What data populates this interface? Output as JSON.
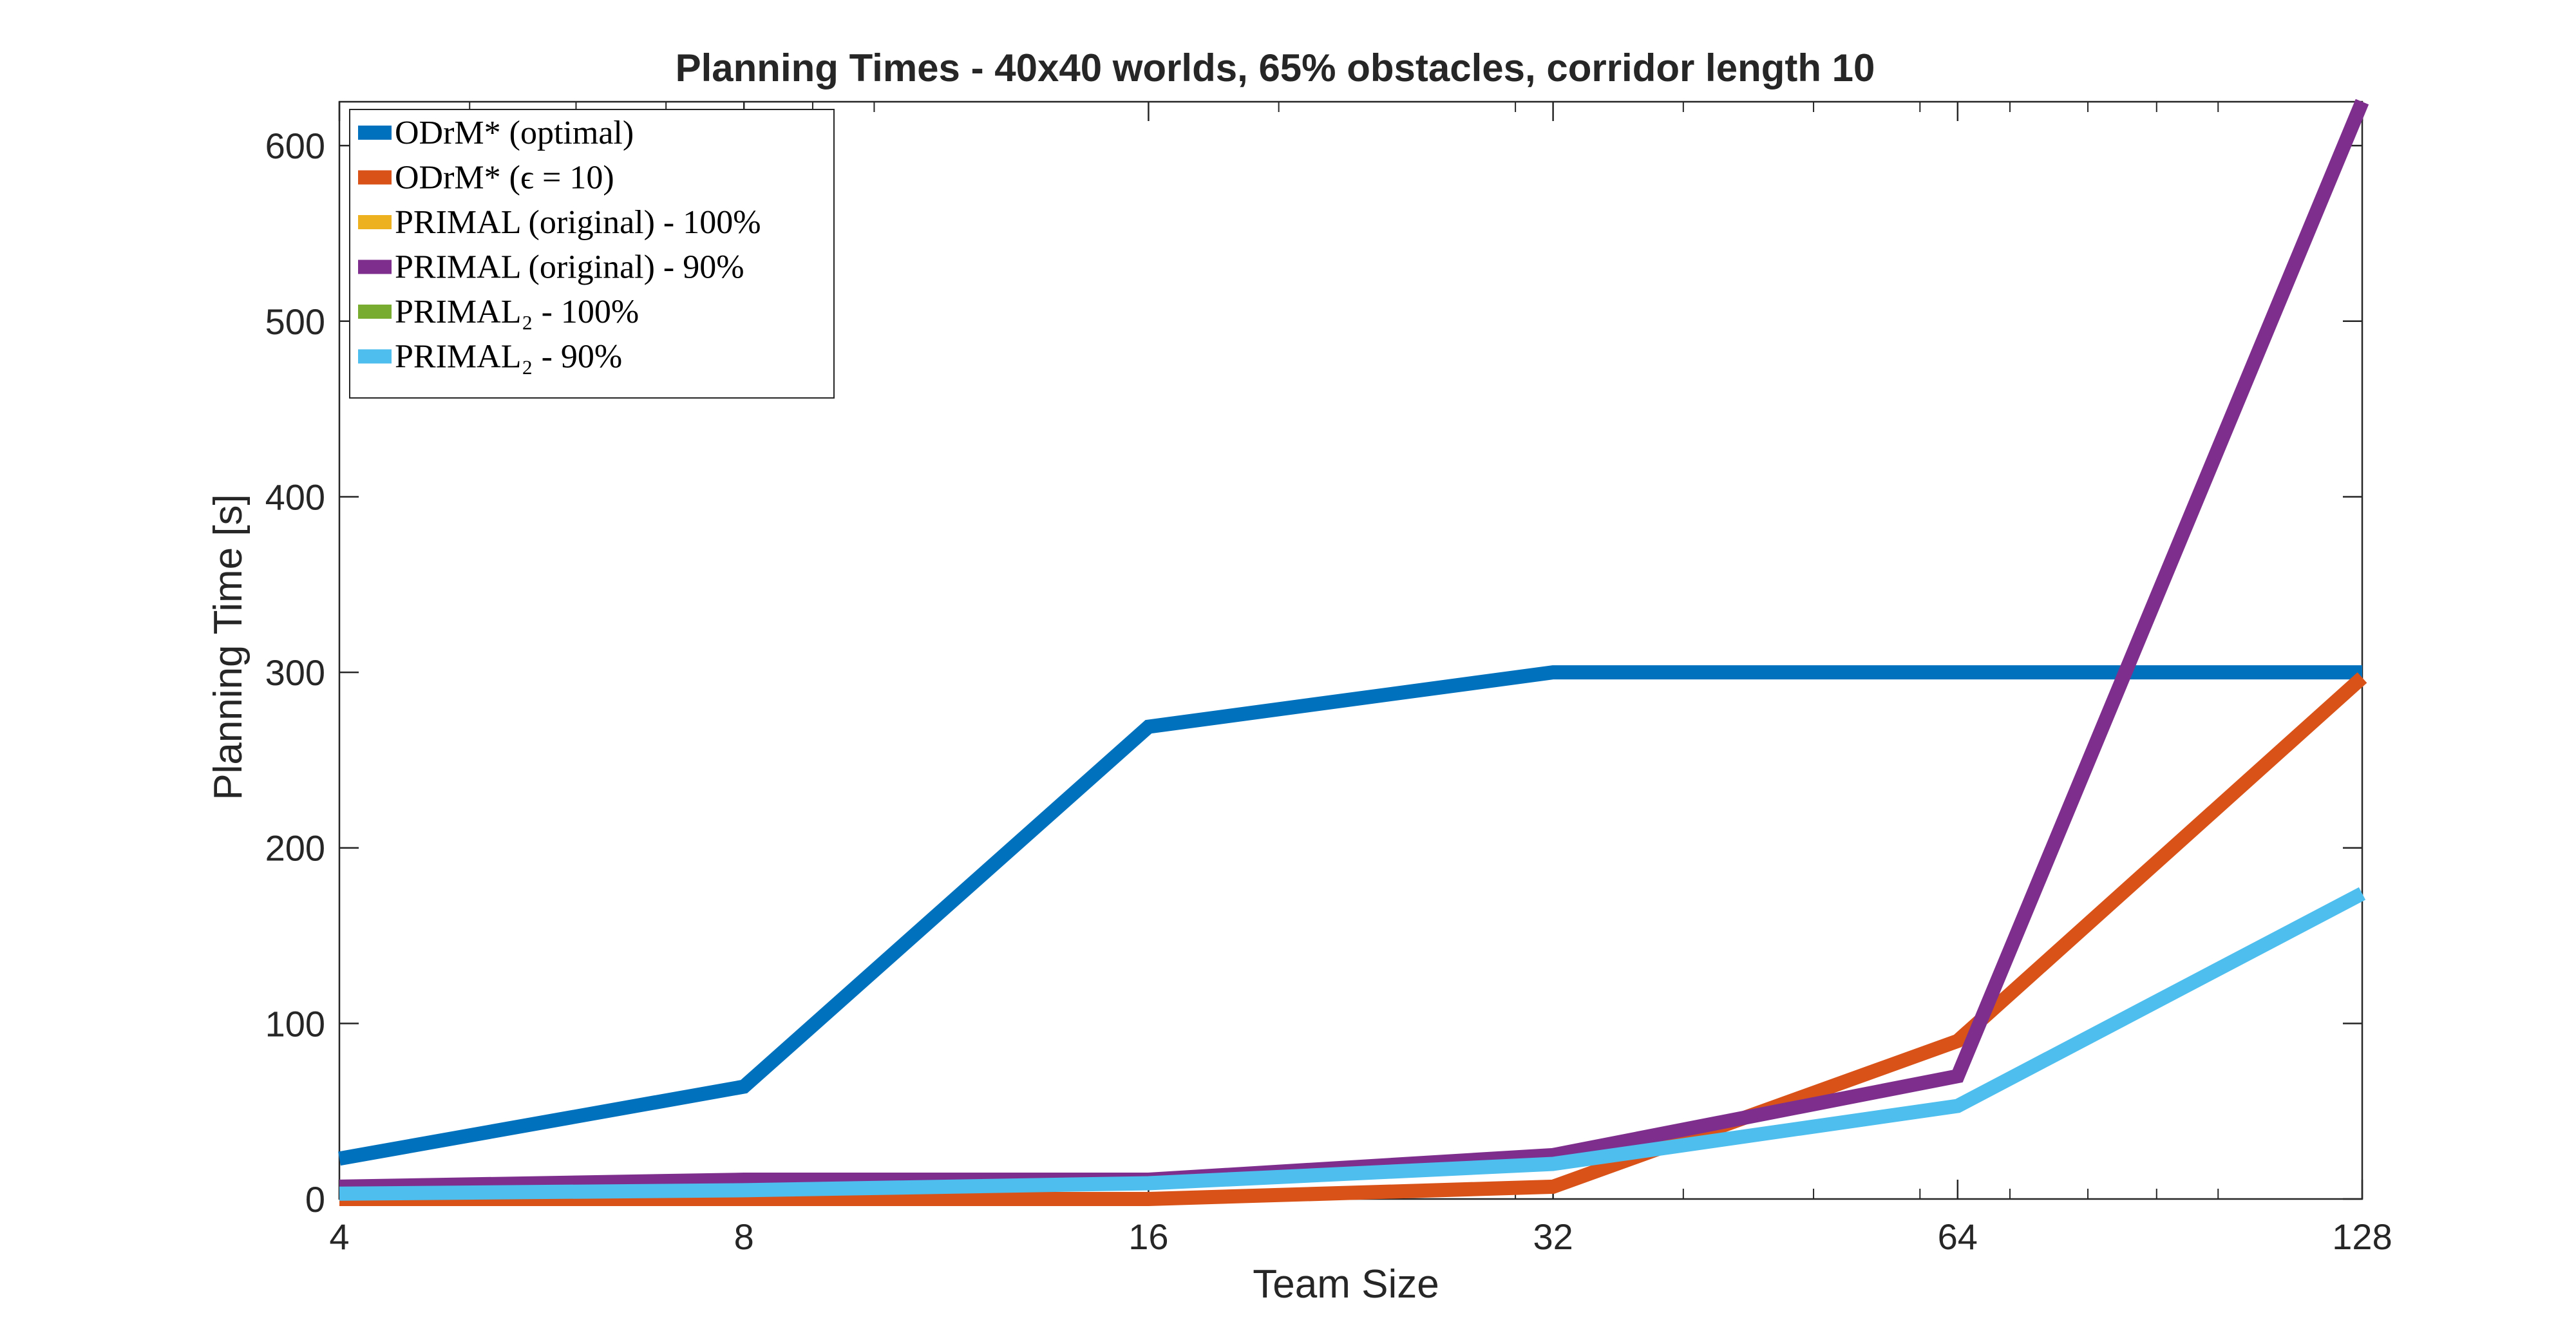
{
  "chart_data": {
    "type": "line",
    "title": "Planning Times - 40x40 worlds, 65% obstacles, corridor length 10",
    "xlabel": "Team Size",
    "ylabel": "Planning Time [s]",
    "x_scale": "log2",
    "x": [
      4,
      8,
      16,
      32,
      64,
      128
    ],
    "x_tick_labels": [
      "4",
      "8",
      "16",
      "32",
      "64",
      "128"
    ],
    "xlim": [
      4,
      128
    ],
    "ylim": [
      0,
      625
    ],
    "y_ticks": [
      0,
      100,
      200,
      300,
      400,
      500,
      600
    ],
    "y_tick_labels": [
      "0",
      "100",
      "200",
      "300",
      "400",
      "500",
      "600"
    ],
    "grid": false,
    "legend_position": "top-left",
    "series": [
      {
        "name": "ODrM* (optimal)",
        "color": "#0072BD",
        "values": [
          23,
          64,
          269,
          300,
          300,
          300
        ]
      },
      {
        "name": "ODrM* (ϵ = 10)",
        "color": "#D95319",
        "values": [
          0,
          0,
          0,
          7,
          90,
          297
        ]
      },
      {
        "name": "PRIMAL (original) - 100%",
        "color": "#EDB120",
        "values": [
          null,
          null,
          null,
          null,
          null,
          null
        ]
      },
      {
        "name": "PRIMAL (original) - 90%",
        "color": "#7E2F8E",
        "values": [
          7,
          11,
          11,
          25,
          70,
          625
        ]
      },
      {
        "name": "PRIMAL₂ - 100%",
        "color": "#77AC30",
        "values": [
          null,
          null,
          null,
          null,
          null,
          null
        ]
      },
      {
        "name": "PRIMAL₂ - 90%",
        "color": "#4DBEEE",
        "values": [
          3,
          5,
          9,
          20,
          53,
          174
        ]
      }
    ]
  }
}
